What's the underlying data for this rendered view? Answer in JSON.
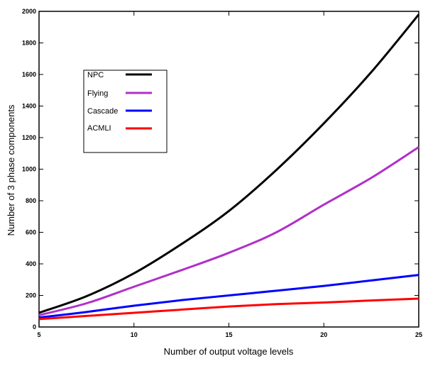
{
  "chart_data": {
    "type": "line",
    "title": "",
    "xlabel": "Number of output voltage levels",
    "ylabel": "Number of 3 phase components",
    "xlim": [
      5,
      25
    ],
    "ylim": [
      0,
      2000
    ],
    "xticks": [
      5,
      10,
      15,
      20,
      25
    ],
    "yticks": [
      0,
      200,
      400,
      600,
      800,
      1000,
      1200,
      1400,
      1600,
      1800,
      2000
    ],
    "grid": false,
    "legend_position": "upper-left",
    "x": [
      5,
      7.5,
      10,
      12.5,
      15,
      17.5,
      20,
      22.5,
      25
    ],
    "series": [
      {
        "name": "NPC",
        "color": "#000000",
        "values": [
          90,
          195,
          340,
          525,
          735,
          995,
          1290,
          1615,
          1980
        ]
      },
      {
        "name": "Flying",
        "color": "#b030c8",
        "values": [
          75,
          150,
          255,
          360,
          470,
          600,
          775,
          945,
          1140
        ]
      },
      {
        "name": "Cascade",
        "color": "#0000ff",
        "values": [
          60,
          95,
          135,
          170,
          200,
          230,
          260,
          295,
          330
        ]
      },
      {
        "name": "ACMLI",
        "color": "#ff0000",
        "values": [
          50,
          70,
          90,
          110,
          130,
          145,
          155,
          168,
          180
        ]
      }
    ]
  }
}
